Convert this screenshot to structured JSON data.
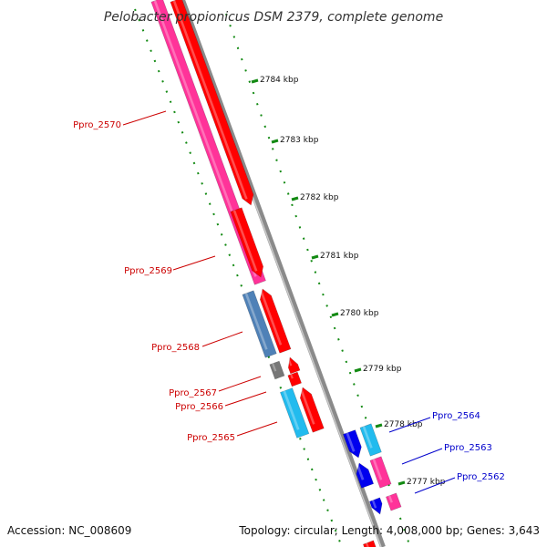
{
  "title": "Pelobacter propionicus DSM 2379, complete genome",
  "footer": {
    "accession": "Accession: NC_008609",
    "topology": "Topology: circular; Length: 4,008,000 bp; Genes: 3,643"
  },
  "colors": {
    "backbone": "#8a8a8a",
    "tick_green": "#138a13",
    "label_red": "#cc0000",
    "label_blue": "#0000cc",
    "gene_pink": "#ff3399",
    "gene_red": "#ff0000",
    "gene_steel": "#4f81b7",
    "gene_gray": "#777777",
    "gene_cyan": "#22bbee",
    "gene_blue": "#0000ee"
  },
  "ticks": [
    {
      "label": "2784 kbp",
      "kbp": 2784
    },
    {
      "label": "2783 kbp",
      "kbp": 2783
    },
    {
      "label": "2782 kbp",
      "kbp": 2782
    },
    {
      "label": "2781 kbp",
      "kbp": 2781
    },
    {
      "label": "2780 kbp",
      "kbp": 2780
    },
    {
      "label": "2779 kbp",
      "kbp": 2779
    },
    {
      "label": "2778 kbp",
      "kbp": 2778
    },
    {
      "label": "2777 kbp",
      "kbp": 2777
    }
  ],
  "gene_labels": [
    {
      "name": "Ppro_2570",
      "strand": "reverse"
    },
    {
      "name": "Ppro_2569",
      "strand": "reverse"
    },
    {
      "name": "Ppro_2568",
      "strand": "reverse"
    },
    {
      "name": "Ppro_2567",
      "strand": "reverse"
    },
    {
      "name": "Ppro_2566",
      "strand": "reverse"
    },
    {
      "name": "Ppro_2565",
      "strand": "reverse"
    },
    {
      "name": "Ppro_2564",
      "strand": "forward"
    },
    {
      "name": "Ppro_2563",
      "strand": "forward"
    },
    {
      "name": "Ppro_2562",
      "strand": "forward"
    }
  ]
}
